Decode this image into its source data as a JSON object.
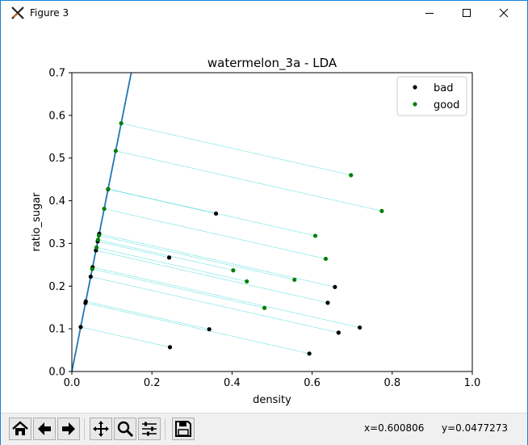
{
  "window": {
    "title": "Figure 3",
    "controls": {
      "minimize": "minimize",
      "maximize": "maximize",
      "close": "close"
    }
  },
  "toolbar": {
    "buttons": [
      "home-icon",
      "back-arrow-icon",
      "forward-arrow-icon",
      "pan-icon",
      "zoom-icon",
      "configure-subplots-icon",
      "save-icon"
    ],
    "coord_x": "x=0.600806",
    "coord_y": "y=0.0477273"
  },
  "colors": {
    "bad": "#000000",
    "good": "#008000",
    "lda_line": "#1f77b4",
    "projection": "#00cccc"
  },
  "chart_data": {
    "type": "scatter",
    "title": "watermelon_3a - LDA",
    "xlabel": "density",
    "ylabel": "ratio_sugar",
    "xlim": [
      0.0,
      1.0
    ],
    "ylim": [
      0.0,
      0.7
    ],
    "xticks": [
      "0.0",
      "0.2",
      "0.4",
      "0.6",
      "0.8",
      "1.0"
    ],
    "yticks": [
      "0.0",
      "0.1",
      "0.2",
      "0.3",
      "0.4",
      "0.5",
      "0.6",
      "0.7"
    ],
    "legend": {
      "location": "top-right",
      "entries": [
        "bad",
        "good"
      ]
    },
    "lda_direction": {
      "slope": 4.72
    },
    "series": [
      {
        "name": "bad",
        "points": [
          [
            0.243,
            0.267
          ],
          [
            0.245,
            0.057
          ],
          [
            0.343,
            0.099
          ],
          [
            0.36,
            0.37
          ],
          [
            0.593,
            0.042
          ],
          [
            0.639,
            0.161
          ],
          [
            0.657,
            0.198
          ],
          [
            0.666,
            0.091
          ],
          [
            0.719,
            0.103
          ]
        ]
      },
      {
        "name": "good",
        "points": [
          [
            0.697,
            0.46
          ],
          [
            0.774,
            0.376
          ],
          [
            0.634,
            0.264
          ],
          [
            0.608,
            0.318
          ],
          [
            0.556,
            0.215
          ],
          [
            0.403,
            0.237
          ],
          [
            0.481,
            0.149
          ],
          [
            0.437,
            0.211
          ]
        ]
      }
    ]
  }
}
